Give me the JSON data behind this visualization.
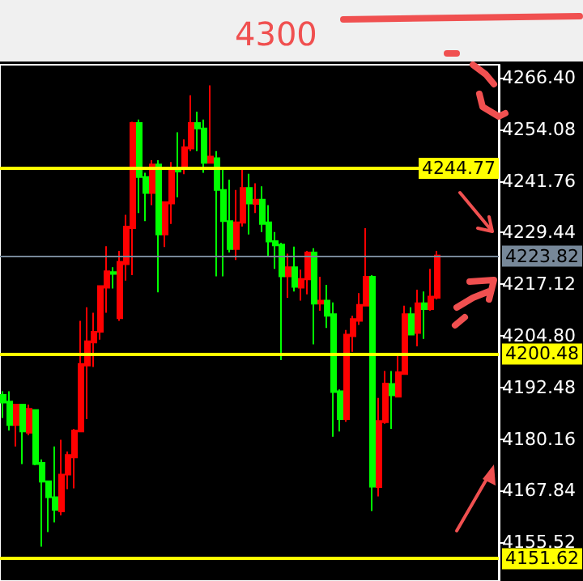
{
  "chart_data": {
    "type": "candlestick",
    "annotations": [
      "4300"
    ],
    "categories": [
      null,
      null,
      null,
      null,
      null,
      null,
      null,
      null,
      null,
      null,
      null,
      null,
      null,
      null,
      null,
      null,
      null,
      null,
      null,
      null,
      null,
      null,
      null,
      null,
      null,
      null,
      null,
      null,
      null,
      null,
      null,
      null,
      null,
      null,
      null,
      null,
      null,
      null,
      null,
      null,
      null,
      null,
      null,
      null,
      null,
      null,
      null,
      null,
      null,
      null,
      null,
      null,
      null,
      null,
      null,
      null,
      null,
      null,
      null,
      null,
      null,
      null,
      null,
      null,
      null,
      null,
      null,
      null
    ],
    "ohlc": [
      [
        4190.7,
        4191.6,
        4185.2,
        4188.9
      ],
      [
        4189.1,
        4191.6,
        4182.2,
        4183.5
      ],
      [
        4183.5,
        4188.4,
        4178.4,
        4188.4
      ],
      [
        4188.4,
        4188.4,
        4174.2,
        4182.0
      ],
      [
        4181.7,
        4188.4,
        4181.1,
        4187.4
      ],
      [
        4187.1,
        4187.1,
        4173.9,
        4174.2
      ],
      [
        4174.5,
        4175.3,
        4154.5,
        4170.0
      ],
      [
        4170.1,
        4170.1,
        4158.0,
        4166.3
      ],
      [
        4166.3,
        4178.4,
        4160.3,
        4163.3
      ],
      [
        4162.9,
        4180.0,
        4162.0,
        4171.7
      ],
      [
        4171.7,
        4177.2,
        4168.2,
        4176.4
      ],
      [
        4175.8,
        4182.6,
        4168.4,
        4182.2
      ],
      [
        4182.0,
        4208.4,
        4181.8,
        4198.1
      ],
      [
        4197.7,
        4211.6,
        4184.9,
        4203.5
      ],
      [
        4203.2,
        4210.3,
        4197.4,
        4205.8
      ],
      [
        4205.8,
        4216.7,
        4203.9,
        4216.7
      ],
      [
        4216.3,
        4226.2,
        4210.3,
        4220.2
      ],
      [
        4220.0,
        4221.2,
        4216.1,
        4219.6
      ],
      [
        4209.0,
        4225.1,
        4208.4,
        4222.5
      ],
      [
        4221.9,
        4233.7,
        4218.0,
        4230.9
      ],
      [
        4230.5,
        4255.9,
        4219.3,
        4255.6
      ],
      [
        4255.6,
        4256.4,
        4234.1,
        4242.7
      ],
      [
        4242.7,
        4243.7,
        4232.2,
        4238.9
      ],
      [
        4238.9,
        4246.7,
        4236.0,
        4245.7
      ],
      [
        4245.7,
        4246.7,
        4215.2,
        4229.0
      ],
      [
        4229.0,
        4236.7,
        4226.0,
        4236.7
      ],
      [
        4236.4,
        4246.3,
        4231.5,
        4244.8
      ],
      [
        4244.4,
        4253.4,
        4237.9,
        4244.0
      ],
      [
        4245.1,
        4251.7,
        4243.4,
        4249.8
      ],
      [
        4249.5,
        4262.2,
        4248.9,
        4255.6
      ],
      [
        4255.6,
        4258.3,
        4248.9,
        4254.3
      ],
      [
        4254.3,
        4256.4,
        4243.7,
        4246.1
      ],
      [
        4246.1,
        4264.6,
        4246.1,
        4247.6
      ],
      [
        4247.2,
        4248.9,
        4219.0,
        4239.6
      ],
      [
        4239.6,
        4244.4,
        4219.0,
        4232.2
      ],
      [
        4232.2,
        4242.1,
        4224.7,
        4225.5
      ],
      [
        4225.5,
        4239.6,
        4222.9,
        4231.9
      ],
      [
        4231.8,
        4244.4,
        4230.9,
        4240.1
      ],
      [
        4240.1,
        4243.5,
        4229.0,
        4236.4
      ],
      [
        4236.3,
        4241.2,
        4234.1,
        4237.3
      ],
      [
        4237.3,
        4240.5,
        4229.6,
        4231.5
      ],
      [
        4231.9,
        4236.0,
        4223.8,
        4227.3
      ],
      [
        4227.4,
        4229.6,
        4220.8,
        4226.4
      ],
      [
        4226.6,
        4227.0,
        4199.0,
        4219.0
      ],
      [
        4219.0,
        4224.4,
        4213.9,
        4221.2
      ],
      [
        4221.2,
        4226.1,
        4215.4,
        4216.5
      ],
      [
        4216.3,
        4220.6,
        4213.2,
        4218.4
      ],
      [
        4218.3,
        4225.1,
        4214.7,
        4224.7
      ],
      [
        4224.7,
        4225.7,
        4202.8,
        4212.5
      ],
      [
        4212.5,
        4218.9,
        4210.8,
        4213.2
      ],
      [
        4213.2,
        4217.0,
        4206.7,
        4209.6
      ],
      [
        4210.0,
        4212.8,
        4180.7,
        4191.4
      ],
      [
        4191.6,
        4192.0,
        4182.0,
        4184.9
      ],
      [
        4184.9,
        4206.2,
        4184.3,
        4205.1
      ],
      [
        4204.7,
        4209.6,
        4201.0,
        4208.8
      ],
      [
        4208.4,
        4215.0,
        4207.4,
        4212.2
      ],
      [
        4212.0,
        4230.5,
        4212.0,
        4218.9
      ],
      [
        4218.9,
        4219.3,
        4163.0,
        4168.8
      ],
      [
        4168.7,
        4190.0,
        4166.5,
        4184.5
      ],
      [
        4184.2,
        4196.4,
        4183.8,
        4193.4
      ],
      [
        4193.3,
        4196.4,
        4182.6,
        4190.6
      ],
      [
        4190.3,
        4200.0,
        4190.3,
        4196.1
      ],
      [
        4195.7,
        4212.0,
        4195.7,
        4210.0
      ],
      [
        4210.0,
        4211.6,
        4205.0,
        4205.1
      ],
      [
        4205.5,
        4215.8,
        4202.3,
        4212.6
      ],
      [
        4212.6,
        4215.4,
        4204.1,
        4211.2
      ],
      [
        4211.2,
        4220.8,
        4210.8,
        4214.2
      ],
      [
        4213.9,
        4225.1,
        4213.5,
        4224.0
      ]
    ],
    "colors": [
      "#00ff00",
      "#00ff00",
      "#ff0000",
      "#00ff00",
      "#ff0000",
      "#00ff00",
      "#00ff00",
      "#00ff00",
      "#00ff00",
      "#ff0000",
      "#ff0000",
      "#ff0000",
      "#ff0000",
      "#ff0000",
      "#ff0000",
      "#ff0000",
      "#ff0000",
      "#00ff00",
      "#ff0000",
      "#ff0000",
      "#ff0000",
      "#00ff00",
      "#00ff00",
      "#ff0000",
      "#00ff00",
      "#ff0000",
      "#ff0000",
      "#00ff00",
      "#ff0000",
      "#ff0000",
      "#00ff00",
      "#00ff00",
      "#ff0000",
      "#00ff00",
      "#00ff00",
      "#00ff00",
      "#ff0000",
      "#ff0000",
      "#00ff00",
      "#ff0000",
      "#00ff00",
      "#00ff00",
      "#00ff00",
      "#00ff00",
      "#ff0000",
      "#00ff00",
      "#ff0000",
      "#ff0000",
      "#00ff00",
      "#ff0000",
      "#00ff00",
      "#00ff00",
      "#00ff00",
      "#ff0000",
      "#ff0000",
      "#ff0000",
      "#ff0000",
      "#00ff00",
      "#ff0000",
      "#ff0000",
      "#00ff00",
      "#ff0000",
      "#ff0000",
      "#00ff00",
      "#ff0000",
      "#00ff00",
      "#ff0000",
      "#ff0000"
    ],
    "ylim": [
      4146.3,
      4269.5
    ],
    "yticks": [
      {
        "value": 4155.52,
        "label": "4155.52"
      },
      {
        "value": 4167.84,
        "label": "4167.84"
      },
      {
        "value": 4180.16,
        "label": "4180.16"
      },
      {
        "value": 4192.48,
        "label": "4192.48"
      },
      {
        "value": 4204.8,
        "label": "4204.80"
      },
      {
        "value": 4217.12,
        "label": "4217.12"
      },
      {
        "value": 4229.44,
        "label": "4229.44"
      },
      {
        "value": 4241.76,
        "label": "4241.76"
      },
      {
        "value": 4254.08,
        "label": "4254.08"
      },
      {
        "value": 4266.4,
        "label": "4266.40"
      }
    ],
    "ref_lines": [
      {
        "axis": "y",
        "value": 4244.77,
        "label": "4244.77",
        "color": "#ffff00"
      },
      {
        "axis": "y",
        "value": 4223.82,
        "label": "4223.82",
        "color": "#778899"
      },
      {
        "axis": "y",
        "value": 4200.48,
        "label": "4200.48",
        "color": "#ffff00"
      },
      {
        "axis": "y",
        "value": 4151.62,
        "label": "4151.62",
        "color": "#ffff00"
      }
    ],
    "grid": false
  }
}
